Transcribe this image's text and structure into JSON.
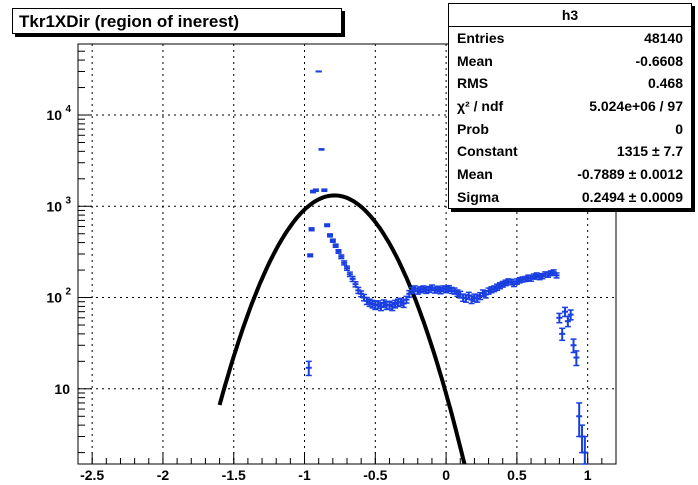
{
  "chart_data": {
    "type": "scatter",
    "title": "Tkr1XDir (region of inerest)",
    "xlim": [
      -2.6,
      1.2
    ],
    "ylim": [
      1.5,
      60000
    ],
    "yscale": "log",
    "grid": true,
    "x_ticks": [
      "-2.5",
      "-2",
      "-1.5",
      "-1",
      "-0.5",
      "0",
      "0.5",
      "1"
    ],
    "x_tick_values": [
      -2.5,
      -2,
      -1.5,
      -1,
      -0.5,
      0,
      0.5,
      1
    ],
    "y_ticks": [
      {
        "value": 10,
        "base": "10",
        "exp": ""
      },
      {
        "value": 100,
        "base": "10",
        "exp": "2"
      },
      {
        "value": 1000,
        "base": "10",
        "exp": "3"
      },
      {
        "value": 10000,
        "base": "10",
        "exp": "4"
      }
    ],
    "series": [
      {
        "color": "#1a3fe0",
        "marker": "cross",
        "x": [
          -0.97,
          -0.96,
          -0.95,
          -0.94,
          -0.92,
          -0.9,
          -0.88,
          -0.86,
          -0.84,
          -0.82,
          -0.8,
          -0.78,
          -0.76,
          -0.74,
          -0.72,
          -0.7,
          -0.68,
          -0.66,
          -0.64,
          -0.62,
          -0.6,
          -0.58,
          -0.56,
          -0.54,
          -0.52,
          -0.5,
          -0.48,
          -0.46,
          -0.44,
          -0.42,
          -0.4,
          -0.38,
          -0.36,
          -0.34,
          -0.32,
          -0.3,
          -0.28,
          -0.26,
          -0.24,
          -0.22,
          -0.2,
          -0.18,
          -0.16,
          -0.14,
          -0.12,
          -0.1,
          -0.08,
          -0.06,
          -0.04,
          -0.02,
          0,
          0.02,
          0.04,
          0.06,
          0.08,
          0.1,
          0.12,
          0.14,
          0.16,
          0.18,
          0.2,
          0.22,
          0.24,
          0.26,
          0.28,
          0.3,
          0.32,
          0.34,
          0.36,
          0.38,
          0.4,
          0.42,
          0.44,
          0.46,
          0.48,
          0.5,
          0.52,
          0.54,
          0.56,
          0.58,
          0.6,
          0.62,
          0.64,
          0.66,
          0.68,
          0.7,
          0.72,
          0.74,
          0.76,
          0.78,
          0.8,
          0.82,
          0.84,
          0.86,
          0.88,
          0.9,
          0.92,
          0.94,
          0.96,
          0.98
        ],
        "y": [
          17,
          290,
          560,
          1450,
          1500,
          30000,
          4200,
          1500,
          620,
          480,
          420,
          370,
          320,
          280,
          240,
          210,
          180,
          160,
          140,
          120,
          110,
          100,
          92,
          88,
          85,
          82,
          84,
          80,
          86,
          82,
          83,
          80,
          85,
          88,
          90,
          86,
          95,
          110,
          120,
          125,
          118,
          122,
          125,
          120,
          123,
          128,
          121,
          124,
          119,
          125,
          122,
          126,
          120,
          118,
          112,
          108,
          100,
          98,
          105,
          95,
          100,
          98,
          104,
          112,
          108,
          118,
          122,
          125,
          130,
          135,
          140,
          145,
          150,
          148,
          142,
          150,
          155,
          158,
          160,
          165,
          162,
          170,
          175,
          168,
          172,
          180,
          178,
          185,
          190,
          175,
          60,
          40,
          70,
          55,
          65,
          30,
          22,
          5,
          3,
          2
        ],
        "err": [
          3,
          10,
          20,
          40,
          40,
          200,
          60,
          40,
          20,
          18,
          16,
          15,
          14,
          13,
          12,
          11,
          10,
          10,
          9,
          9,
          8,
          8,
          8,
          8,
          8,
          8,
          8,
          8,
          8,
          8,
          8,
          8,
          8,
          8,
          8,
          8,
          8,
          9,
          9,
          9,
          9,
          9,
          9,
          9,
          9,
          9,
          9,
          9,
          9,
          9,
          9,
          9,
          9,
          9,
          9,
          9,
          9,
          9,
          9,
          9,
          9,
          9,
          9,
          9,
          9,
          9,
          9,
          9,
          10,
          10,
          10,
          10,
          10,
          10,
          10,
          10,
          10,
          10,
          10,
          11,
          11,
          11,
          11,
          11,
          11,
          11,
          11,
          11,
          11,
          11,
          7,
          6,
          8,
          7,
          8,
          5,
          4,
          2,
          1,
          1
        ]
      },
      {
        "color": "#000000",
        "type": "line",
        "fit": "gaussian",
        "constant": 1315,
        "mean": -0.7889,
        "sigma": 0.2494,
        "x_range": [
          -1.6,
          0.13
        ]
      }
    ]
  },
  "stats": {
    "name": "h3",
    "rows": [
      {
        "label": "Entries",
        "value": "48140"
      },
      {
        "label": "Mean",
        "value": "-0.6608"
      },
      {
        "label": "RMS",
        "value": "0.468"
      },
      {
        "label": "χ² / ndf",
        "value": "5.024e+06 / 97"
      },
      {
        "label": "Prob",
        "value": "0"
      },
      {
        "label": "Constant",
        "value": "1315 ± 7.7"
      },
      {
        "label": "Mean",
        "value": "-0.7889 ± 0.0012"
      },
      {
        "label": "Sigma",
        "value": "0.2494 ± 0.0009"
      }
    ]
  }
}
